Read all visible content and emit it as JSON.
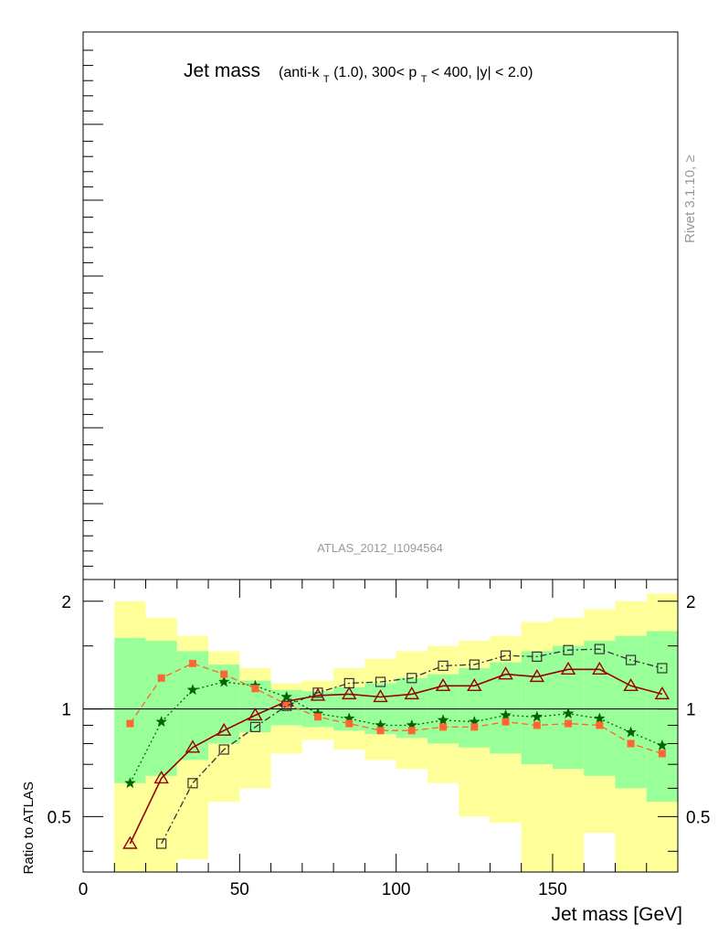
{
  "chart_data": {
    "type": "line",
    "title_main": "Jet mass",
    "title_sub_parts": [
      "(anti-k",
      "T",
      "(1.0), 300< p",
      "T",
      " < 400, |y| < 2.0)"
    ],
    "watermark": "ATLAS_2012_I1094564",
    "side_label": "Rivet 3.1.10, ≥",
    "xlabel": "Jet mass [GeV]",
    "ylabel": "Ratio to ATLAS",
    "xlim": [
      0,
      190
    ],
    "ylim": [
      0.35,
      2.3
    ],
    "y_scale": "log",
    "reference_line": 1,
    "x_ticks": [
      0,
      50,
      100,
      150
    ],
    "y_ticks": [
      0.5,
      1,
      2
    ],
    "x_tick_labels": [
      "0",
      "50",
      "100",
      "150"
    ],
    "y_tick_labels": [
      "0.5",
      "1",
      "2"
    ],
    "colors": {
      "outer_band": "#ffff99",
      "inner_band": "#99ff99",
      "triangle_series": "#990000",
      "star_series": "#006600",
      "filled_square_series": "#ff6633",
      "open_square_series": "#333333"
    },
    "bands": {
      "bin_edges": [
        10,
        20,
        30,
        40,
        50,
        60,
        70,
        80,
        90,
        100,
        110,
        120,
        130,
        140,
        150,
        160,
        170,
        180,
        190
      ],
      "inner_upper": [
        1.58,
        1.55,
        1.45,
        1.33,
        1.2,
        1.13,
        1.12,
        1.15,
        1.18,
        1.22,
        1.25,
        1.3,
        1.35,
        1.45,
        1.5,
        1.55,
        1.6,
        1.65
      ],
      "inner_lower": [
        0.62,
        0.65,
        0.72,
        0.8,
        0.86,
        0.9,
        0.89,
        0.87,
        0.85,
        0.83,
        0.8,
        0.78,
        0.75,
        0.7,
        0.68,
        0.65,
        0.6,
        0.55
      ],
      "outer_upper": [
        2.0,
        1.8,
        1.6,
        1.45,
        1.3,
        1.18,
        1.2,
        1.3,
        1.38,
        1.45,
        1.5,
        1.55,
        1.6,
        1.75,
        1.8,
        1.9,
        2.0,
        2.1
      ],
      "outer_lower": [
        0.35,
        0.3,
        0.38,
        0.55,
        0.6,
        0.75,
        0.82,
        0.77,
        0.72,
        0.68,
        0.62,
        0.5,
        0.48,
        0.35,
        0.3,
        0.45,
        0.35,
        0.3
      ]
    },
    "series": [
      {
        "id": "triangle",
        "marker": "open-triangle",
        "line": "solid",
        "x": [
          15,
          25,
          35,
          45,
          55,
          65,
          75,
          85,
          95,
          105,
          115,
          125,
          135,
          145,
          155,
          165,
          175,
          185
        ],
        "y": [
          0.42,
          0.64,
          0.78,
          0.87,
          0.96,
          1.05,
          1.09,
          1.1,
          1.08,
          1.1,
          1.16,
          1.16,
          1.25,
          1.23,
          1.29,
          1.29,
          1.16,
          1.1
        ]
      },
      {
        "id": "star",
        "marker": "star",
        "line": "dotted",
        "x": [
          15,
          25,
          35,
          45,
          55,
          65,
          75,
          85,
          95,
          105,
          115,
          125,
          135,
          145,
          155,
          165,
          175,
          185
        ],
        "y": [
          0.62,
          0.92,
          1.13,
          1.19,
          1.16,
          1.08,
          0.97,
          0.94,
          0.9,
          0.9,
          0.93,
          0.92,
          0.96,
          0.95,
          0.97,
          0.94,
          0.86,
          0.79
        ]
      },
      {
        "id": "filled-square",
        "marker": "filled-square",
        "line": "dashed",
        "x": [
          15,
          25,
          35,
          45,
          55,
          65,
          75,
          85,
          95,
          105,
          115,
          125,
          135,
          145,
          155,
          165,
          175,
          185
        ],
        "y": [
          0.91,
          1.22,
          1.34,
          1.25,
          1.14,
          1.03,
          0.95,
          0.91,
          0.87,
          0.87,
          0.89,
          0.89,
          0.92,
          0.9,
          0.91,
          0.9,
          0.8,
          0.75
        ]
      },
      {
        "id": "open-square",
        "marker": "open-square",
        "line": "dashdot",
        "x": [
          25,
          35,
          45,
          55,
          65,
          75,
          85,
          95,
          105,
          115,
          125,
          135,
          145,
          155,
          165,
          175,
          185
        ],
        "y": [
          0.42,
          0.62,
          0.77,
          0.89,
          1.02,
          1.11,
          1.18,
          1.19,
          1.22,
          1.32,
          1.33,
          1.41,
          1.4,
          1.46,
          1.47,
          1.37,
          1.3
        ]
      }
    ]
  }
}
